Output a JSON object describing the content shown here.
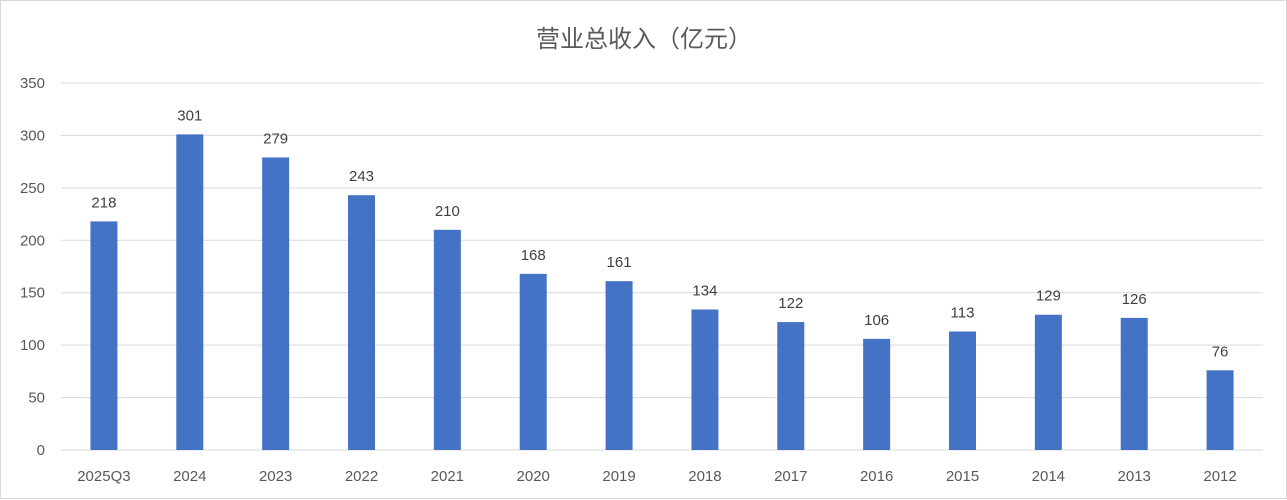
{
  "chart_data": {
    "type": "bar",
    "title": "营业总收入（亿元）",
    "xlabel": "",
    "ylabel": "",
    "categories": [
      "2025Q3",
      "2024",
      "2023",
      "2022",
      "2021",
      "2020",
      "2019",
      "2018",
      "2017",
      "2016",
      "2015",
      "2014",
      "2013",
      "2012"
    ],
    "values": [
      218,
      301,
      279,
      243,
      210,
      168,
      161,
      134,
      122,
      106,
      113,
      129,
      126,
      76
    ],
    "ylim": [
      0,
      350
    ],
    "yticks": [
      0,
      50,
      100,
      150,
      200,
      250,
      300,
      350
    ],
    "grid": true,
    "legend": "none",
    "bar_color": "#4472C4",
    "data_labels": true
  }
}
